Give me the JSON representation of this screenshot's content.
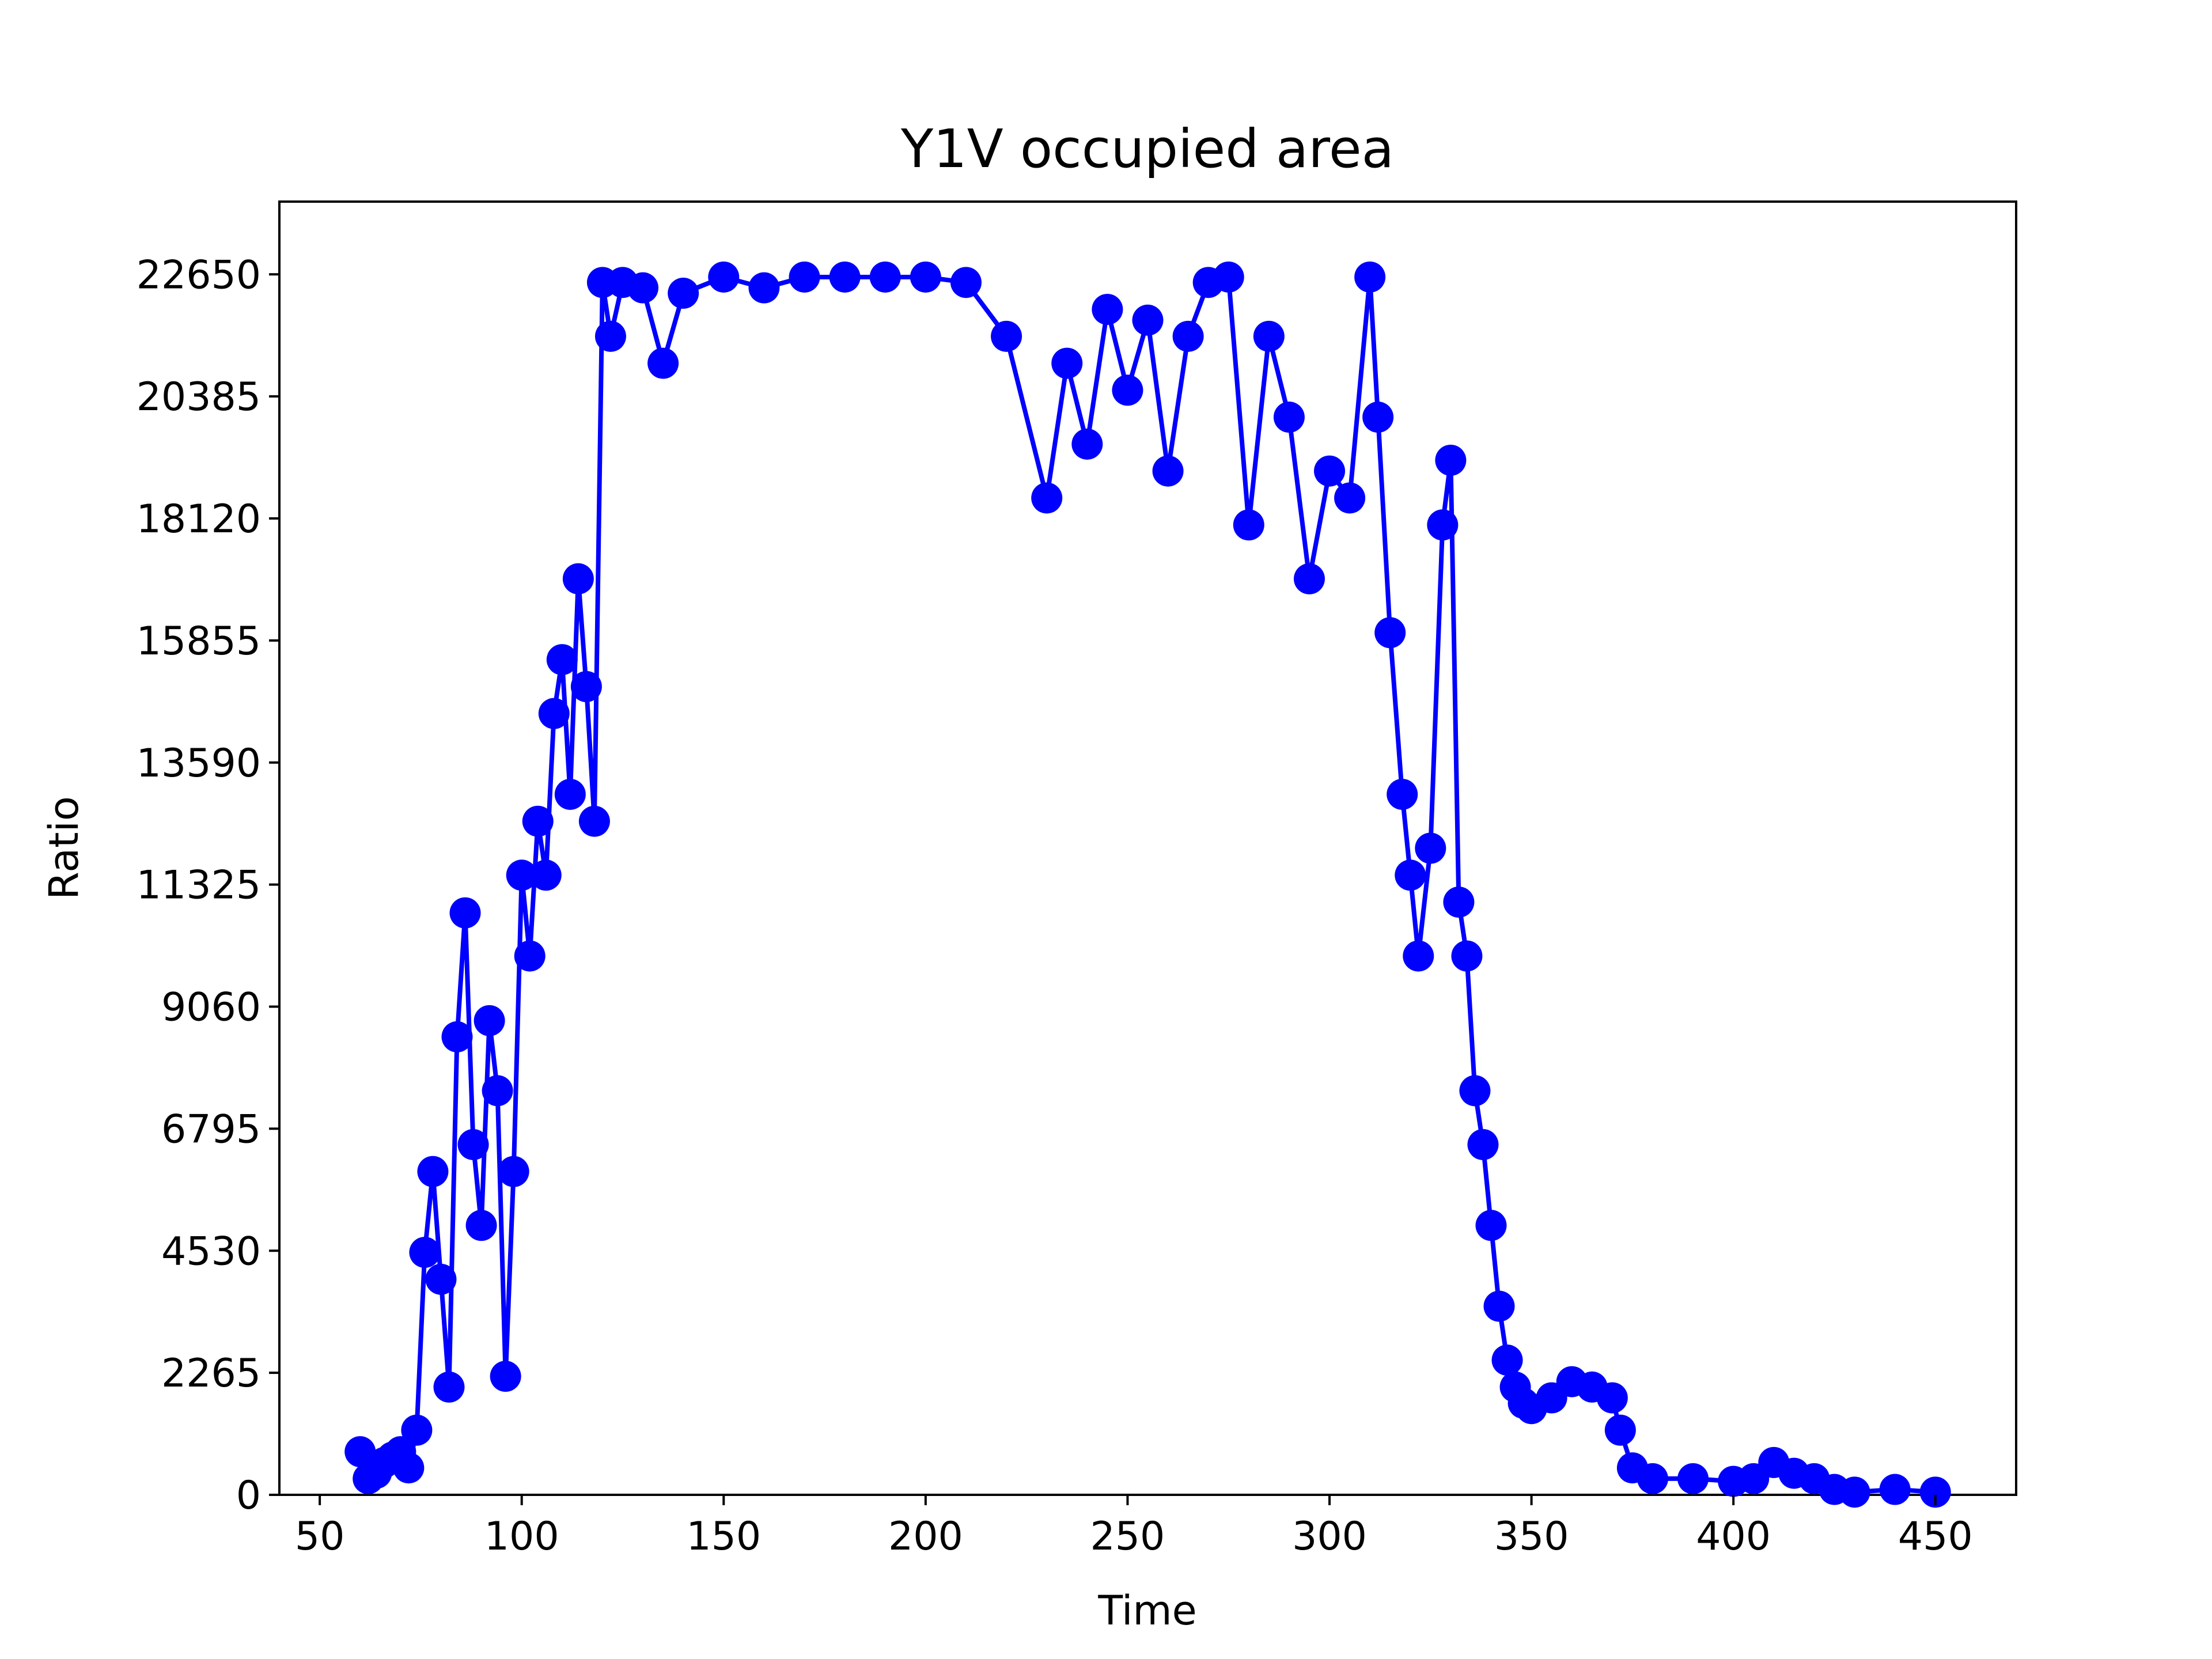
{
  "chart_data": {
    "type": "line",
    "title": "Y1V occupied area",
    "xlabel": "Time",
    "ylabel": "Ratio",
    "xlim": [
      40,
      470
    ],
    "ylim": [
      0,
      24000
    ],
    "xticks": [
      50,
      100,
      150,
      200,
      250,
      300,
      350,
      400,
      450
    ],
    "xtick_labels": [
      "50",
      "100",
      "150",
      "200",
      "250",
      "300",
      "350",
      "400",
      "450"
    ],
    "yticks": [
      0,
      2265,
      4530,
      6795,
      9060,
      11325,
      13590,
      15855,
      18120,
      20385,
      22650
    ],
    "ytick_labels": [
      "0",
      "2265",
      "4530",
      "6795",
      "9060",
      "11325",
      "13590",
      "15855",
      "18120",
      "20385",
      "22650"
    ],
    "grid": false,
    "legend": false,
    "marker": "circle",
    "color": "#0000ff",
    "series": [
      {
        "name": "",
        "x": [
          60,
          62,
          64,
          66,
          68,
          70,
          72,
          74,
          76,
          78,
          80,
          82,
          84,
          86,
          88,
          90,
          92,
          94,
          96,
          98,
          100,
          102,
          104,
          106,
          108,
          110,
          112,
          114,
          116,
          118,
          120,
          122,
          125,
          130,
          135,
          140,
          150,
          160,
          170,
          180,
          190,
          200,
          210,
          220,
          230,
          235,
          240,
          245,
          250,
          255,
          260,
          265,
          270,
          275,
          280,
          285,
          290,
          295,
          300,
          305,
          310,
          312,
          315,
          318,
          320,
          322,
          325,
          328,
          330,
          332,
          334,
          336,
          338,
          340,
          342,
          344,
          346,
          348,
          350,
          355,
          360,
          365,
          370,
          372,
          375,
          380,
          390,
          400,
          405,
          410,
          415,
          420,
          425,
          430,
          440,
          450
        ],
        "y": [
          800,
          300,
          400,
          600,
          700,
          800,
          500,
          1200,
          4500,
          6000,
          4000,
          2000,
          8500,
          10800,
          6500,
          5000,
          8800,
          7500,
          2200,
          6000,
          11500,
          10000,
          12500,
          11500,
          14500,
          15500,
          13000,
          17000,
          15000,
          12500,
          22500,
          21500,
          22500,
          22400,
          21000,
          22300,
          22600,
          22400,
          22600,
          22600,
          22600,
          22600,
          22500,
          21500,
          18500,
          21000,
          19500,
          22000,
          20500,
          21800,
          19000,
          21500,
          22500,
          22600,
          18000,
          21500,
          20000,
          17000,
          19000,
          18500,
          22600,
          20000,
          16000,
          13000,
          11500,
          10000,
          12000,
          18000,
          19200,
          11000,
          10000,
          7500,
          6500,
          5000,
          3500,
          2500,
          2000,
          1700,
          1600,
          1800,
          2100,
          2000,
          1800,
          1200,
          500,
          300,
          300,
          250,
          300,
          600,
          400,
          300,
          100,
          50,
          100,
          50
        ]
      }
    ]
  }
}
